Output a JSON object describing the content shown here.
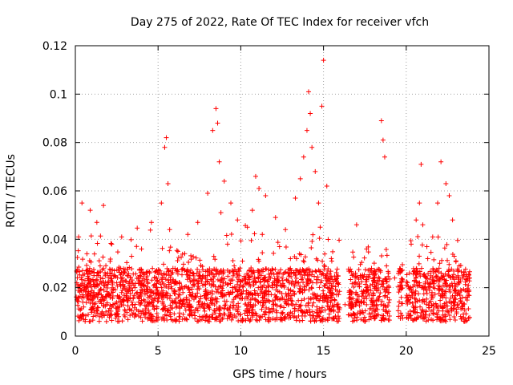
{
  "chart_data": {
    "type": "scatter",
    "title": "Day 275 of 2022, Rate Of TEC Index for receiver vfch",
    "xlabel": "GPS time / hours",
    "ylabel": "ROTI / TECUs",
    "xlim": [
      0,
      25
    ],
    "ylim": [
      0,
      0.12
    ],
    "xticks": [
      "0",
      "5",
      "10",
      "15",
      "20",
      "25"
    ],
    "yticks": [
      "0",
      "0.02",
      "0.04",
      "0.06",
      "0.08",
      "0.1",
      "0.12"
    ],
    "grid": true,
    "marker": "plus",
    "color": "#ff0000",
    "x": [
      0.1,
      0.2,
      0.3,
      0.4,
      0.5,
      0.7,
      0.9,
      1.1,
      1.3,
      1.5,
      1.7,
      1.9,
      2.2,
      2.5,
      2.8,
      3.1,
      3.4,
      3.7,
      4.0,
      4.3,
      4.6,
      4.9,
      5.2,
      5.4,
      5.5,
      5.6,
      5.7,
      5.9,
      6.2,
      6.5,
      6.8,
      7.1,
      7.4,
      7.7,
      8.0,
      8.3,
      8.5,
      8.6,
      8.7,
      8.8,
      9.0,
      9.2,
      9.4,
      9.6,
      9.8,
      10.1,
      10.4,
      10.7,
      10.9,
      11.1,
      11.3,
      11.5,
      11.8,
      12.1,
      12.4,
      12.7,
      13.0,
      13.3,
      13.6,
      13.8,
      14.0,
      14.1,
      14.2,
      14.3,
      14.5,
      14.7,
      14.8,
      14.9,
      15.0,
      15.2,
      15.5,
      15.9,
      16.3,
      16.7,
      17.0,
      17.6,
      17.9,
      18.1,
      18.3,
      18.5,
      18.6,
      18.7,
      18.9,
      19.3,
      19.7,
      20.0,
      20.3,
      20.6,
      20.8,
      20.9,
      21.0,
      21.3,
      21.6,
      21.9,
      22.1,
      22.4,
      22.6,
      22.8,
      22.9,
      23.0,
      23.2,
      23.4,
      23.7
    ],
    "y": [
      0.015,
      0.041,
      0.021,
      0.055,
      0.012,
      0.034,
      0.052,
      0.018,
      0.047,
      0.029,
      0.054,
      0.013,
      0.038,
      0.022,
      0.041,
      0.016,
      0.033,
      0.011,
      0.036,
      0.024,
      0.047,
      0.019,
      0.055,
      0.078,
      0.082,
      0.063,
      0.044,
      0.028,
      0.035,
      0.018,
      0.042,
      0.026,
      0.047,
      0.021,
      0.059,
      0.085,
      0.094,
      0.088,
      0.072,
      0.051,
      0.064,
      0.038,
      0.055,
      0.029,
      0.048,
      0.031,
      0.045,
      0.052,
      0.066,
      0.061,
      0.042,
      0.058,
      0.027,
      0.049,
      0.021,
      0.044,
      0.032,
      0.057,
      0.065,
      0.074,
      0.085,
      0.101,
      0.092,
      0.078,
      0.068,
      0.055,
      0.045,
      0.095,
      0.114,
      0.062,
      0.031,
      0.022,
      0.013,
      0.018,
      0.046,
      0.036,
      0.028,
      0.024,
      0.019,
      0.089,
      0.081,
      0.074,
      0.018,
      0.024,
      0.016,
      0.021,
      0.038,
      0.048,
      0.055,
      0.071,
      0.046,
      0.032,
      0.041,
      0.055,
      0.072,
      0.063,
      0.058,
      0.048,
      0.033,
      0.019,
      0.029,
      0.024,
      0.016
    ]
  }
}
